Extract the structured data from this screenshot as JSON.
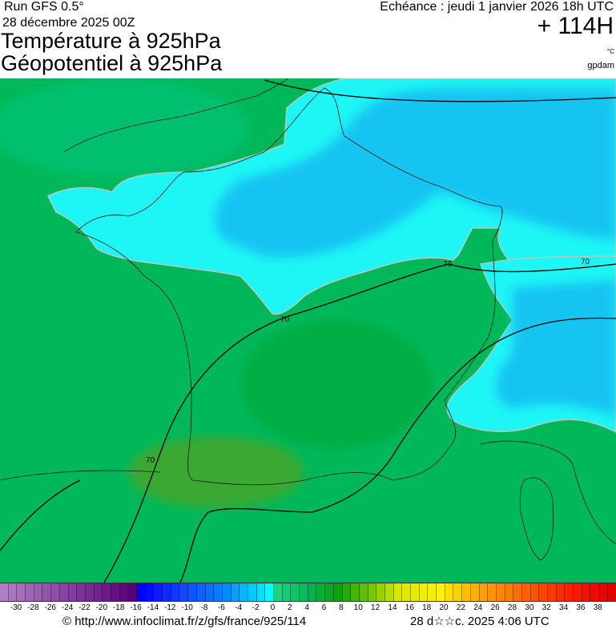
{
  "header": {
    "run": "Run GFS 0.5°",
    "run_date": "28 décembre 2025 00Z",
    "title_line1": "Température à 925hPa",
    "title_line2": "Géopotentiel à 925hPa",
    "echeance": "Echéance : jeudi 1 janvier 2026 18h UTC",
    "lead_time": "+ 114H",
    "unit_temperature": "°C",
    "unit_geopotential": "gpdam"
  },
  "map": {
    "contour_labels": [
      "70",
      "70",
      "70",
      "70"
    ],
    "colors": {
      "sea_green": "#00b85a",
      "cyan": "#00ffff",
      "blue": "#10b8f0",
      "warm_green": "#3aa830"
    }
  },
  "colorbar": {
    "min": -31,
    "max": 40,
    "step": 1,
    "tick_labels": [
      "-30",
      "-28",
      "-26",
      "-24",
      "-22",
      "-20",
      "-18",
      "-16",
      "-14",
      "-12",
      "-10",
      "-8",
      "-6",
      "-4",
      "-2",
      "0",
      "2",
      "4",
      "6",
      "8",
      "10",
      "12",
      "14",
      "16",
      "18",
      "20",
      "22",
      "24",
      "26",
      "28",
      "30",
      "32",
      "34",
      "36",
      "38"
    ]
  },
  "footer": {
    "copyright": "© http://www.infoclimat.fr/z/gfs/france/925/114",
    "generated": "28 d☆☆c. 2025  4:06 UTC"
  }
}
